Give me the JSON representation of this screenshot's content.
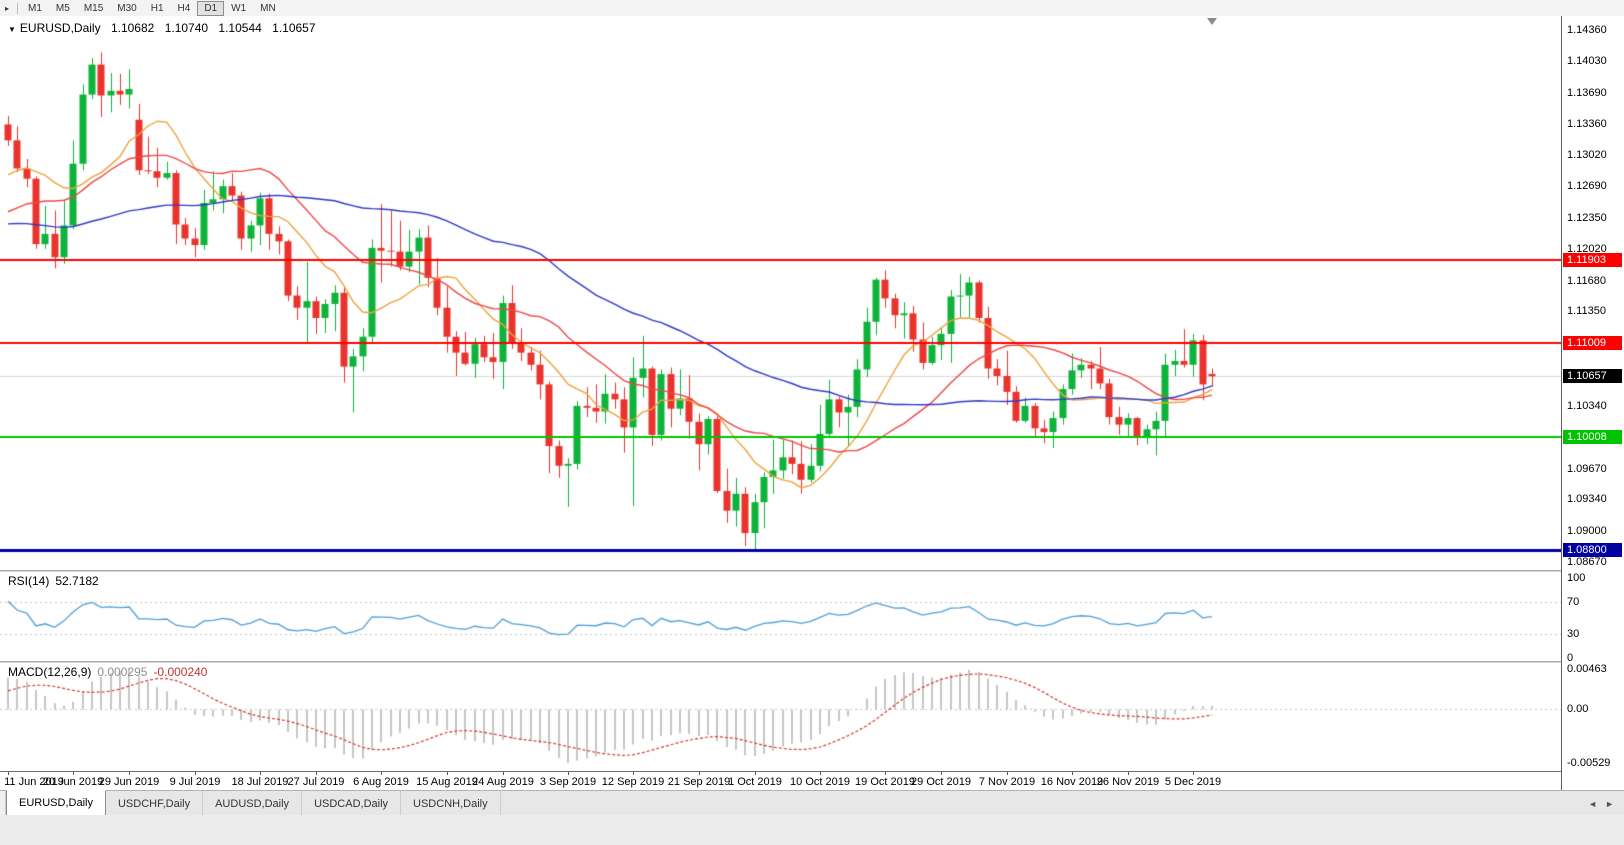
{
  "toolbar": {
    "expander_icon": "▸",
    "timeframes": [
      "M1",
      "M5",
      "M15",
      "M30",
      "H1",
      "H4",
      "D1",
      "W1",
      "MN"
    ],
    "active_timeframe": "D1"
  },
  "chart": {
    "collapse_icon": "▼",
    "symbol_label": "EURUSD,Daily",
    "ohlc": {
      "open": "1.10682",
      "high": "1.10740",
      "low": "1.10544",
      "close": "1.10657"
    },
    "colors": {
      "up": "#0db33a",
      "down": "#e8342c",
      "background": "#ffffff"
    },
    "hlines": [
      {
        "label": "1.11903",
        "value": 1.11903,
        "color": "#ff0000",
        "width": 2
      },
      {
        "label": "1.11009",
        "value": 1.11009,
        "color": "#ff0000",
        "width": 2
      },
      {
        "label": "1.10008",
        "value": 1.10008,
        "color": "#00c400",
        "width": 2
      },
      {
        "label": "1.08800",
        "value": 1.088,
        "color": "#0000a0",
        "width": 3
      }
    ],
    "current_price": {
      "label": "1.10657",
      "value": 1.10657,
      "color": "#000000"
    },
    "price_axis_ticks": [
      "1.14360",
      "1.14030",
      "1.13690",
      "1.13360",
      "1.13020",
      "1.12690",
      "1.12350",
      "1.12020",
      "1.11680",
      "1.11350",
      "1.10340",
      "1.09670",
      "1.09340",
      "1.09000",
      "1.08670"
    ]
  },
  "chart_data": {
    "type": "candlestick",
    "title": "EURUSD,Daily",
    "price_range": [
      1.08585,
      1.1451
    ],
    "x_labels": [
      "11 Jun 2019",
      "20 Jun 2019",
      "29 Jun 2019",
      "9 Jul 2019",
      "18 Jul 2019",
      "27 Jul 2019",
      "6 Aug 2019",
      "15 Aug 2019",
      "24 Aug 2019",
      "3 Sep 2019",
      "12 Sep 2019",
      "21 Sep 2019",
      "1 Oct 2019",
      "10 Oct 2019",
      "19 Oct 2019",
      "29 Oct 2019",
      "7 Nov 2019",
      "16 Nov 2019",
      "26 Nov 2019",
      "5 Dec 2019"
    ],
    "candles": [
      [
        1.1335,
        1.1344,
        1.1312,
        1.1318
      ],
      [
        1.1318,
        1.1333,
        1.1284,
        1.1288
      ],
      [
        1.1288,
        1.1298,
        1.1268,
        1.1277
      ],
      [
        1.1277,
        1.1279,
        1.1202,
        1.1207
      ],
      [
        1.1207,
        1.1248,
        1.1202,
        1.1218
      ],
      [
        1.1218,
        1.1243,
        1.1181,
        1.1193
      ],
      [
        1.1193,
        1.1254,
        1.1186,
        1.1227
      ],
      [
        1.1227,
        1.1318,
        1.1223,
        1.1293
      ],
      [
        1.1293,
        1.1378,
        1.1286,
        1.1367
      ],
      [
        1.1367,
        1.1406,
        1.1362,
        1.1399
      ],
      [
        1.1399,
        1.1412,
        1.1343,
        1.1366
      ],
      [
        1.1366,
        1.139,
        1.1348,
        1.1371
      ],
      [
        1.1371,
        1.1389,
        1.1356,
        1.1367
      ],
      [
        1.1367,
        1.1394,
        1.1352,
        1.1373
      ],
      [
        1.134,
        1.1357,
        1.1281,
        1.1286
      ],
      [
        1.1286,
        1.1322,
        1.1282,
        1.1285
      ],
      [
        1.1285,
        1.131,
        1.1268,
        1.1278
      ],
      [
        1.1278,
        1.1295,
        1.1276,
        1.1283
      ],
      [
        1.1283,
        1.1286,
        1.1207,
        1.1228
      ],
      [
        1.1228,
        1.1235,
        1.1206,
        1.1213
      ],
      [
        1.1213,
        1.1224,
        1.1193,
        1.1206
      ],
      [
        1.1206,
        1.1265,
        1.1201,
        1.1251
      ],
      [
        1.1251,
        1.1285,
        1.1243,
        1.1255
      ],
      [
        1.1255,
        1.1276,
        1.124,
        1.1269
      ],
      [
        1.1269,
        1.1283,
        1.1254,
        1.1259
      ],
      [
        1.1259,
        1.1263,
        1.1201,
        1.1213
      ],
      [
        1.1213,
        1.1232,
        1.1199,
        1.1227
      ],
      [
        1.1227,
        1.1262,
        1.1206,
        1.1256
      ],
      [
        1.1256,
        1.1261,
        1.1201,
        1.1218
      ],
      [
        1.1218,
        1.1226,
        1.1196,
        1.121
      ],
      [
        1.121,
        1.1212,
        1.1146,
        1.1152
      ],
      [
        1.1152,
        1.1162,
        1.1126,
        1.1139
      ],
      [
        1.1139,
        1.1188,
        1.1102,
        1.1146
      ],
      [
        1.1146,
        1.1151,
        1.1111,
        1.1128
      ],
      [
        1.1128,
        1.1148,
        1.1112,
        1.1143
      ],
      [
        1.1143,
        1.1163,
        1.1114,
        1.1155
      ],
      [
        1.1155,
        1.116,
        1.1059,
        1.1076
      ],
      [
        1.1076,
        1.1095,
        1.1027,
        1.1087
      ],
      [
        1.1087,
        1.1117,
        1.1071,
        1.1108
      ],
      [
        1.1108,
        1.1212,
        1.1101,
        1.1203
      ],
      [
        1.1203,
        1.125,
        1.1166,
        1.12
      ],
      [
        1.12,
        1.1243,
        1.1183,
        1.1199
      ],
      [
        1.1199,
        1.1232,
        1.1179,
        1.1183
      ],
      [
        1.1183,
        1.1222,
        1.1177,
        1.1199
      ],
      [
        1.1199,
        1.1223,
        1.1164,
        1.1214
      ],
      [
        1.1214,
        1.1227,
        1.1161,
        1.1171
      ],
      [
        1.1171,
        1.1192,
        1.1131,
        1.1139
      ],
      [
        1.1139,
        1.1162,
        1.1091,
        1.1108
      ],
      [
        1.1108,
        1.1114,
        1.1066,
        1.1091
      ],
      [
        1.1091,
        1.1113,
        1.1077,
        1.1079
      ],
      [
        1.1079,
        1.1107,
        1.1064,
        1.11
      ],
      [
        1.11,
        1.1109,
        1.1081,
        1.1086
      ],
      [
        1.1086,
        1.1112,
        1.1063,
        1.1081
      ],
      [
        1.1081,
        1.1152,
        1.1052,
        1.1144
      ],
      [
        1.1144,
        1.1163,
        1.1095,
        1.1102
      ],
      [
        1.1102,
        1.1117,
        1.1082,
        1.1091
      ],
      [
        1.1091,
        1.1097,
        1.1072,
        1.1078
      ],
      [
        1.1078,
        1.1093,
        1.1041,
        1.1057
      ],
      [
        1.1057,
        1.106,
        1.0962,
        1.0991
      ],
      [
        1.0991,
        1.0997,
        1.0957,
        1.097
      ],
      [
        1.097,
        1.0978,
        1.0926,
        1.0972
      ],
      [
        1.0972,
        1.1039,
        1.0966,
        1.1034
      ],
      [
        1.1034,
        1.1054,
        1.1022,
        1.1032
      ],
      [
        1.1032,
        1.1057,
        1.1016,
        1.1028
      ],
      [
        1.1028,
        1.1068,
        1.1015,
        1.1047
      ],
      [
        1.1047,
        1.1059,
        1.1031,
        1.1041
      ],
      [
        1.1041,
        1.1054,
        1.0984,
        1.1011
      ],
      [
        1.1011,
        1.1086,
        1.0927,
        1.1064
      ],
      [
        1.1064,
        1.1109,
        1.1043,
        1.1074
      ],
      [
        1.1074,
        1.1076,
        1.0991,
        1.1003
      ],
      [
        1.1003,
        1.1073,
        1.0997,
        1.1068
      ],
      [
        1.1068,
        1.1075,
        1.1011,
        1.1031
      ],
      [
        1.1031,
        1.1073,
        1.1024,
        1.1042
      ],
      [
        1.1042,
        1.1067,
        1.0999,
        1.1017
      ],
      [
        1.1017,
        1.1026,
        1.0965,
        1.0993
      ],
      [
        1.0993,
        1.1023,
        1.0982,
        1.102
      ],
      [
        1.102,
        1.1023,
        1.0941,
        1.0943
      ],
      [
        1.0943,
        1.0967,
        1.0909,
        1.0922
      ],
      [
        1.0922,
        1.0957,
        1.0905,
        1.094
      ],
      [
        1.094,
        1.0947,
        1.0884,
        1.0898
      ],
      [
        1.0898,
        1.094,
        1.0879,
        1.0931
      ],
      [
        1.0931,
        1.0963,
        1.0903,
        1.0958
      ],
      [
        1.0958,
        1.0998,
        1.094,
        1.0965
      ],
      [
        1.0965,
        1.0998,
        1.0956,
        1.0979
      ],
      [
        1.0979,
        1.0997,
        1.0961,
        1.0972
      ],
      [
        1.0972,
        1.0996,
        1.094,
        1.0955
      ],
      [
        1.0955,
        1.0993,
        1.0952,
        1.097
      ],
      [
        1.097,
        1.1035,
        1.0964,
        1.1004
      ],
      [
        1.1004,
        1.1062,
        1.1001,
        1.1041
      ],
      [
        1.1041,
        1.1044,
        1.1011,
        1.1027
      ],
      [
        1.1027,
        1.1046,
        1.099,
        1.1033
      ],
      [
        1.1033,
        1.1084,
        1.1022,
        1.1073
      ],
      [
        1.1073,
        1.1139,
        1.1065,
        1.1124
      ],
      [
        1.1124,
        1.1171,
        1.111,
        1.1169
      ],
      [
        1.1169,
        1.1179,
        1.1139,
        1.1149
      ],
      [
        1.1149,
        1.1154,
        1.1117,
        1.1131
      ],
      [
        1.1131,
        1.1145,
        1.1106,
        1.1133
      ],
      [
        1.1133,
        1.1141,
        1.1092,
        1.1105
      ],
      [
        1.1105,
        1.1123,
        1.1073,
        1.108
      ],
      [
        1.108,
        1.1108,
        1.1078,
        1.1099
      ],
      [
        1.1099,
        1.1118,
        1.1083,
        1.1111
      ],
      [
        1.1111,
        1.1158,
        1.108,
        1.1151
      ],
      [
        1.1151,
        1.1175,
        1.1129,
        1.1152
      ],
      [
        1.1152,
        1.1172,
        1.1128,
        1.1166
      ],
      [
        1.1166,
        1.1168,
        1.1123,
        1.1128
      ],
      [
        1.1128,
        1.114,
        1.1063,
        1.1074
      ],
      [
        1.1074,
        1.1084,
        1.1056,
        1.1066
      ],
      [
        1.1066,
        1.1093,
        1.1035,
        1.1049
      ],
      [
        1.1049,
        1.1055,
        1.1016,
        1.1018
      ],
      [
        1.1018,
        1.1043,
        1.1016,
        1.1034
      ],
      [
        1.1034,
        1.1037,
        1.1002,
        1.101
      ],
      [
        1.101,
        1.1019,
        1.0994,
        1.1006
      ],
      [
        1.1006,
        1.1028,
        1.0989,
        1.1021
      ],
      [
        1.1021,
        1.1057,
        1.1014,
        1.1052
      ],
      [
        1.1052,
        1.109,
        1.1046,
        1.1072
      ],
      [
        1.1072,
        1.1085,
        1.1064,
        1.1078
      ],
      [
        1.1078,
        1.1082,
        1.1052,
        1.1074
      ],
      [
        1.1074,
        1.1097,
        1.1052,
        1.1058
      ],
      [
        1.1058,
        1.1063,
        1.1014,
        1.1022
      ],
      [
        1.1022,
        1.1033,
        1.1003,
        1.1014
      ],
      [
        1.1014,
        1.1026,
        1.1001,
        1.1021
      ],
      [
        1.1021,
        1.1022,
        1.0992,
        1.1001
      ],
      [
        1.1001,
        1.1014,
        1.0993,
        1.1009
      ],
      [
        1.1009,
        1.1028,
        1.0981,
        1.1018
      ],
      [
        1.1018,
        1.109,
        1.1001,
        1.1078
      ],
      [
        1.1078,
        1.1094,
        1.1066,
        1.1082
      ],
      [
        1.1082,
        1.1116,
        1.1075,
        1.1078
      ],
      [
        1.1078,
        1.1111,
        1.1065,
        1.1104
      ],
      [
        1.1104,
        1.111,
        1.104,
        1.1057
      ],
      [
        1.10682,
        1.1074,
        1.10544,
        1.10657
      ]
    ],
    "warmup_closes": [
      1.1275,
      1.1268,
      1.128,
      1.1272,
      1.1259,
      1.1264,
      1.125,
      1.1245,
      1.1238,
      1.1252,
      1.1245,
      1.1232,
      1.122,
      1.1226,
      1.1215,
      1.1202,
      1.1198,
      1.121,
      1.1223,
      1.1231,
      1.1218,
      1.1205,
      1.1192,
      1.118,
      1.1173,
      1.1166,
      1.1158,
      1.1165,
      1.1179,
      1.1191,
      1.1202,
      1.1188,
      1.1176,
      1.1182,
      1.1195,
      1.1208,
      1.122,
      1.1213,
      1.1226,
      1.1238,
      1.1215,
      1.1242,
      1.1251,
      1.1246,
      1.1258,
      1.127,
      1.1282,
      1.13,
      1.1318,
      1.1327
    ],
    "moving_averages": [
      {
        "name": "ma-fast",
        "period": 10,
        "color": "#eda33f"
      },
      {
        "name": "ma-medium",
        "period": 21,
        "color": "#ef4747"
      },
      {
        "name": "ma-slow",
        "period": 50,
        "color": "#3038c8"
      }
    ],
    "indicators": {
      "rsi": {
        "label": "RSI(14)",
        "value": "52.7182",
        "period": 14,
        "color": "#4f9fd6",
        "levels": [
          70,
          30
        ],
        "axis_ticks": [
          "100",
          "70",
          "30",
          "0"
        ],
        "range": [
          0,
          100
        ]
      },
      "macd": {
        "label": "MACD(12,26,9)",
        "value_main": "0.000295",
        "value_signal": "-0.000240",
        "fast": 12,
        "slow": 26,
        "signal": 9,
        "histogram_color": "#c6c6c6",
        "signal_color": "#d23a32",
        "axis_ticks": [
          "0.00463",
          "0.00",
          "-0.00529"
        ]
      }
    }
  },
  "tabs": {
    "items": [
      "EURUSD,Daily",
      "USDCHF,Daily",
      "AUDUSD,Daily",
      "USDCAD,Daily",
      "USDCNH,Daily"
    ],
    "active_index": 0,
    "scroll_left_icon": "◄",
    "scroll_right_icon": "►"
  }
}
